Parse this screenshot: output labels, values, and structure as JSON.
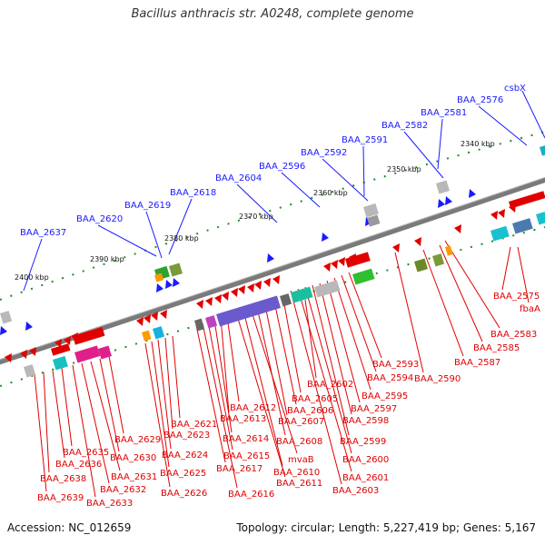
{
  "title": "Bacillus anthracis str. A0248, complete genome",
  "footer": {
    "accession": "Accession: NC_012659",
    "stats": "Topology: circular; Length: 5,227,419 bp; Genes: 5,167"
  },
  "colors": {
    "forward_gene": "#e00000",
    "reverse_gene": "#1a1aff",
    "backbone": "#777777",
    "gc_dots": "#1e8f1e"
  },
  "tick_labels": [
    "2340 kbp",
    "2350 kbp",
    "2360 kbp",
    "2370 kbp",
    "2380 kbp",
    "2390 kbp",
    "2400 kbp"
  ],
  "top_labels": [
    "csbX",
    "BAA_2576",
    "BAA_2581",
    "BAA_2582",
    "BAA_2591",
    "BAA_2592",
    "BAA_2596",
    "BAA_2604",
    "BAA_2618",
    "BAA_2619",
    "BAA_2620",
    "BAA_2637"
  ],
  "bottom_labels": [
    "BAA_2575",
    "fbaA",
    "BAA_2583",
    "BAA_2585",
    "BAA_2587",
    "BAA_2590",
    "BAA_2593",
    "BAA_2594",
    "BAA_2595",
    "BAA_2597",
    "BAA_2598",
    "BAA_2599",
    "BAA_2600",
    "BAA_2601",
    "BAA_2602",
    "BAA_2603",
    "BAA_2605",
    "BAA_2606",
    "BAA_2607",
    "BAA_2608",
    "mvaB",
    "BAA_2610",
    "BAA_2611",
    "BAA_2612",
    "BAA_2613",
    "BAA_2614",
    "BAA_2615",
    "BAA_2616",
    "BAA_2617",
    "BAA_2621",
    "BAA_2623",
    "BAA_2624",
    "BAA_2625",
    "BAA_2626",
    "BAA_2629",
    "BAA_2630",
    "BAA_2631",
    "BAA_2632",
    "BAA_2633",
    "BAA_2635",
    "BAA_2636",
    "BAA_2638",
    "BAA_2639"
  ]
}
